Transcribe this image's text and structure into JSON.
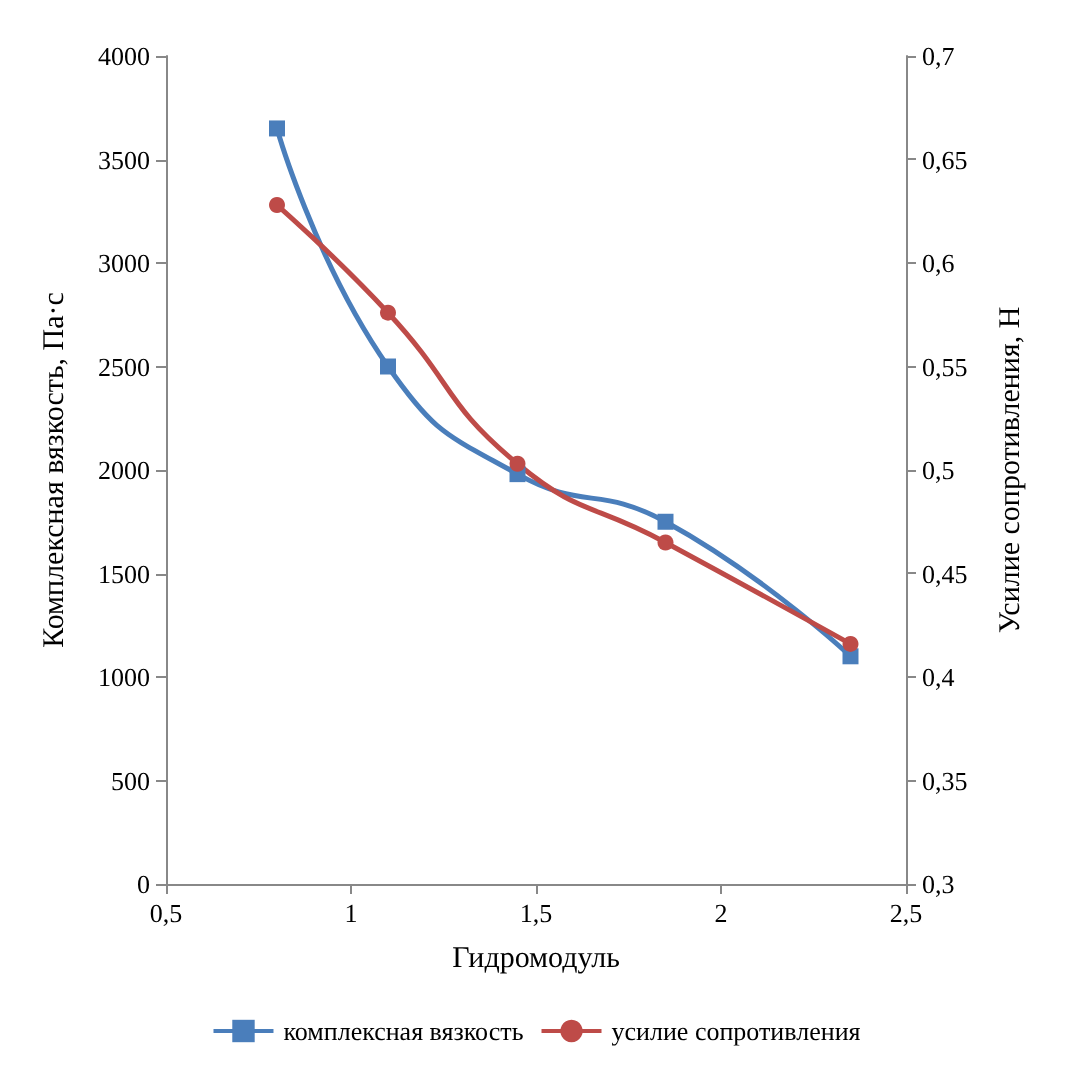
{
  "chart_data": {
    "type": "line",
    "xlabel": "Гидромодуль",
    "ylabel": "Комплексная вязкость, Па·с",
    "y2label": "Усилие сопротивления, Н",
    "xlim": [
      0.5,
      2.5
    ],
    "xticks": [
      {
        "value": 0.5,
        "label": "0,5"
      },
      1,
      {
        "value": 1.5,
        "label": "1,5"
      },
      2,
      {
        "value": 2.5,
        "label": "2,5"
      }
    ],
    "ylim": [
      0,
      4000
    ],
    "yticks": [
      0,
      500,
      1000,
      1500,
      2000,
      2500,
      3000,
      3500,
      4000
    ],
    "y2lim": [
      0.3,
      0.7
    ],
    "y2ticks": [
      {
        "value": 0.3,
        "label": "0,3"
      },
      {
        "value": 0.35,
        "label": "0,35"
      },
      {
        "value": 0.4,
        "label": "0,4"
      },
      {
        "value": 0.45,
        "label": "0,45"
      },
      {
        "value": 0.5,
        "label": "0,5"
      },
      {
        "value": 0.55,
        "label": "0,55"
      },
      {
        "value": 0.6,
        "label": "0,6"
      },
      {
        "value": 0.65,
        "label": "0,65"
      },
      {
        "value": 0.7,
        "label": "0,7"
      }
    ],
    "x": [
      0.8,
      1.1,
      1.45,
      1.85,
      2.35
    ],
    "series": [
      {
        "name": "комплексная вязкость",
        "color": "#4a7ebb",
        "marker": "square",
        "values": [
          3650,
          2500,
          1980,
          1750,
          1100
        ]
      },
      {
        "name": "усилие сопротивления",
        "color": "#be4b48",
        "marker": "circle",
        "axis": "y2",
        "values": [
          0.628,
          0.576,
          0.503,
          0.465,
          0.416
        ]
      }
    ],
    "grid": false,
    "legend": "bottom"
  }
}
